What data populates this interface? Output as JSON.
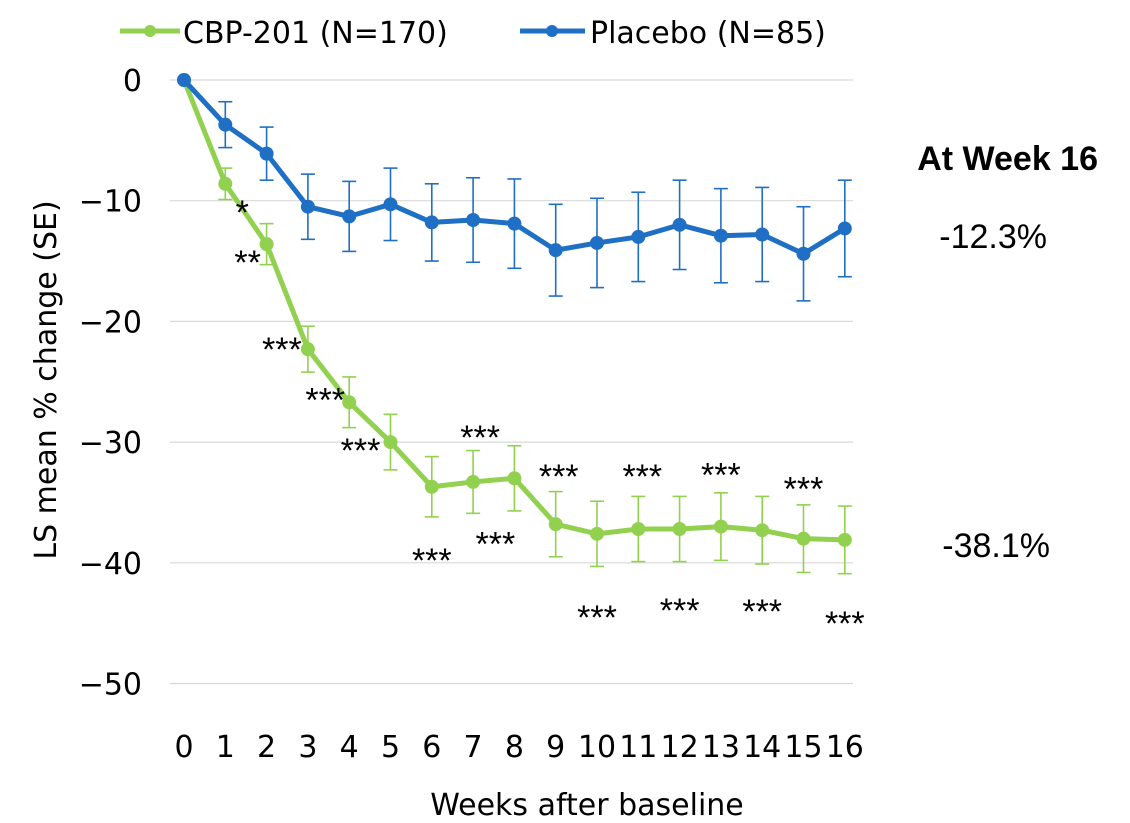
{
  "chart_data": {
    "type": "line",
    "xlabel": "Weeks after baseline",
    "ylabel": "LS mean % change (SE)",
    "x": [
      0,
      1,
      2,
      3,
      4,
      5,
      6,
      7,
      8,
      9,
      10,
      11,
      12,
      13,
      14,
      15,
      16
    ],
    "xticks": [
      "0",
      "1",
      "2",
      "3",
      "4",
      "5",
      "6",
      "7",
      "8",
      "9",
      "10",
      "11",
      "12",
      "13",
      "14",
      "15",
      "16"
    ],
    "yticks": [
      "0",
      "−10",
      "−20",
      "−30",
      "−40",
      "−50"
    ],
    "ylim": [
      -50,
      0
    ],
    "grid": "horizontal",
    "legend": "top",
    "series": [
      {
        "name": "CBP-201 (N=170)",
        "color": "#92d050",
        "values": [
          0,
          -8.6,
          -13.6,
          -22.3,
          -26.7,
          -30.0,
          -33.7,
          -33.3,
          -33.0,
          -36.8,
          -37.6,
          -37.2,
          -37.2,
          -37.0,
          -37.3,
          -38.0,
          -38.1
        ],
        "se": [
          0,
          1.3,
          1.7,
          1.9,
          2.1,
          2.3,
          2.5,
          2.6,
          2.7,
          2.7,
          2.7,
          2.7,
          2.7,
          2.8,
          2.8,
          2.8,
          2.8
        ],
        "annotations": [
          "",
          "*",
          "**",
          "***",
          "***",
          "***",
          "***",
          "***",
          "***",
          "***",
          "***",
          "***",
          "***",
          "***",
          "***",
          "***",
          "***"
        ]
      },
      {
        "name": "Placebo (N=85)",
        "color": "#1f6fc4",
        "values": [
          0,
          -3.7,
          -6.1,
          -10.5,
          -11.3,
          -10.3,
          -11.8,
          -11.6,
          -11.9,
          -14.1,
          -13.5,
          -13.0,
          -12.0,
          -12.9,
          -12.8,
          -14.4,
          -12.3
        ],
        "se": [
          0,
          1.9,
          2.2,
          2.7,
          2.9,
          3.0,
          3.2,
          3.5,
          3.7,
          3.8,
          3.7,
          3.7,
          3.7,
          3.9,
          3.9,
          3.9,
          4.0
        ]
      }
    ],
    "callout": {
      "header": "At Week 16",
      "placebo_value": "-12.3%",
      "cbp_value": "-38.1%"
    }
  }
}
